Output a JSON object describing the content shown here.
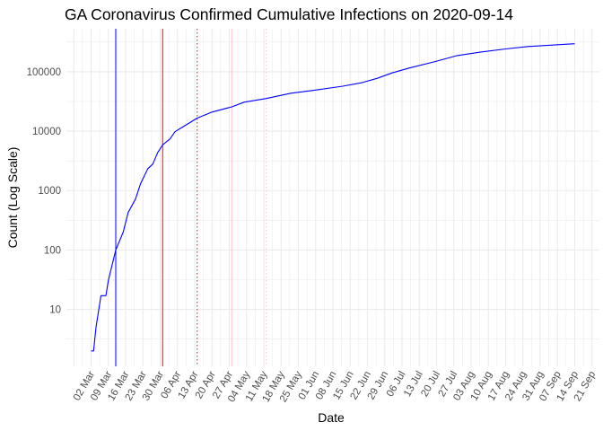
{
  "chart_data": {
    "type": "line",
    "title": "GA Coronavirus Confirmed Cumulative Infections on 2020-09-14",
    "xlabel": "Date",
    "ylabel": "Count (Log Scale)",
    "y_scale": "log10",
    "grid": true,
    "xlim": [
      "2020-02-21",
      "2020-09-24"
    ],
    "ylim": [
      1.1,
      530000
    ],
    "y_ticks": [
      10,
      100,
      1000,
      10000,
      100000
    ],
    "y_tick_labels": [
      "10",
      "100",
      "1000",
      "10000",
      "100000"
    ],
    "x_tick_dates": [
      "2020-03-02",
      "2020-03-09",
      "2020-03-16",
      "2020-03-23",
      "2020-03-30",
      "2020-04-06",
      "2020-04-13",
      "2020-04-20",
      "2020-04-27",
      "2020-05-04",
      "2020-05-11",
      "2020-05-18",
      "2020-05-25",
      "2020-06-01",
      "2020-06-08",
      "2020-06-15",
      "2020-06-22",
      "2020-06-29",
      "2020-07-06",
      "2020-07-13",
      "2020-07-20",
      "2020-07-27",
      "2020-08-03",
      "2020-08-10",
      "2020-08-17",
      "2020-08-24",
      "2020-08-31",
      "2020-09-07",
      "2020-09-14",
      "2020-09-21"
    ],
    "x_tick_labels": [
      "02 Mar",
      "09 Mar",
      "16 Mar",
      "23 Mar",
      "30 Mar",
      "06 Apr",
      "13 Apr",
      "20 Apr",
      "27 Apr",
      "04 May",
      "11 May",
      "18 May",
      "25 May",
      "01 Jun",
      "08 Jun",
      "15 Jun",
      "22 Jun",
      "29 Jun",
      "06 Jul",
      "13 Jul",
      "20 Jul",
      "27 Jul",
      "03 Aug",
      "10 Aug",
      "17 Aug",
      "24 Aug",
      "31 Aug",
      "07 Sep",
      "14 Sep",
      "21 Sep"
    ],
    "series": [
      {
        "color": "#0000ff",
        "x": [
          "2020-03-02",
          "2020-03-03",
          "2020-03-04",
          "2020-03-06",
          "2020-03-08",
          "2020-03-09",
          "2020-03-12",
          "2020-03-15",
          "2020-03-17",
          "2020-03-20",
          "2020-03-22",
          "2020-03-25",
          "2020-03-27",
          "2020-03-29",
          "2020-03-31",
          "2020-04-03",
          "2020-04-05",
          "2020-04-08",
          "2020-04-14",
          "2020-04-20",
          "2020-04-28",
          "2020-05-03",
          "2020-05-12",
          "2020-05-22",
          "2020-05-31",
          "2020-06-12",
          "2020-06-20",
          "2020-06-26",
          "2020-07-02",
          "2020-07-09",
          "2020-07-19",
          "2020-07-28",
          "2020-08-07",
          "2020-08-17",
          "2020-08-26",
          "2020-09-05",
          "2020-09-14"
        ],
        "y": [
          2,
          2,
          5,
          17,
          17,
          31,
          100,
          200,
          427,
          720,
          1290,
          2340,
          2800,
          4380,
          5880,
          7400,
          9800,
          11700,
          16600,
          21000,
          25700,
          30800,
          35500,
          43600,
          48500,
          57200,
          65800,
          77600,
          95800,
          116000,
          147000,
          186000,
          215000,
          242000,
          266000,
          281000,
          296000
        ]
      }
    ],
    "reference_lines": [
      {
        "date": "2020-03-12",
        "color": "#0000ff",
        "style": "solid"
      },
      {
        "date": "2020-03-31",
        "color": "#ff0000",
        "style": "solid"
      },
      {
        "date": "2020-04-14",
        "color": "#ff0000",
        "style": "dotted"
      },
      {
        "date": "2020-04-28",
        "color": "#ffc0cb",
        "style": "solid"
      },
      {
        "date": "2020-05-12",
        "color": "#ffc0cb",
        "style": "dotted"
      }
    ]
  }
}
